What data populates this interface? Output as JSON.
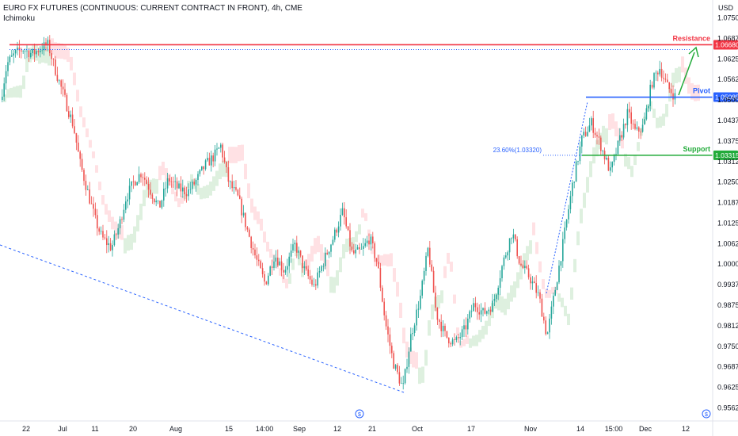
{
  "header": {
    "title": "EURO FX FUTURES (CONTINUOUS: CURRENT CONTRACT IN FRONT), 4h, CME",
    "indicator": "Ichimoku"
  },
  "colors": {
    "resistance": "#f23645",
    "pivot": "#2962ff",
    "support": "#22ab3a",
    "candle_up": "#26a69a",
    "candle_down": "#ef5350",
    "cloud_bull": "#c8e6c9",
    "cloud_bear": "#ffcdd2",
    "dotted_blue": "#2962ff"
  },
  "chart_data": {
    "type": "candlestick",
    "currency": "USD",
    "y_ticks": [
      "1.07500",
      "1.06875",
      "1.06250",
      "1.05625",
      "1.05000",
      "1.04375",
      "1.03750",
      "1.03125",
      "1.02500",
      "1.01875",
      "1.01250",
      "1.00625",
      "1.00000",
      "0.99375",
      "0.98750",
      "0.98125",
      "0.97500",
      "0.96875",
      "0.96250",
      "0.95625"
    ],
    "ylim": [
      0.9525,
      1.0785
    ],
    "x_ticks": [
      "22",
      "Jul",
      "11",
      "20",
      "Aug",
      "15",
      "14:00",
      "Sep",
      "12",
      "21",
      "Oct",
      "17",
      "Nov",
      "14",
      "15:00",
      "Dec",
      "12"
    ],
    "price_path": [
      [
        0,
        1.05
      ],
      [
        8,
        1.061
      ],
      [
        18,
        1.064
      ],
      [
        28,
        1.0655
      ],
      [
        40,
        1.064
      ],
      [
        52,
        1.066
      ],
      [
        60,
        1.0668
      ],
      [
        68,
        1.06
      ],
      [
        80,
        1.051
      ],
      [
        92,
        1.042
      ],
      [
        100,
        1.031
      ],
      [
        110,
        1.022
      ],
      [
        120,
        1.013
      ],
      [
        128,
        1.008
      ],
      [
        140,
        1.005
      ],
      [
        150,
        1.012
      ],
      [
        158,
        1.02
      ],
      [
        168,
        1.025
      ],
      [
        178,
        1.028
      ],
      [
        190,
        1.022
      ],
      [
        200,
        1.017
      ],
      [
        212,
        1.026
      ],
      [
        224,
        1.023
      ],
      [
        236,
        1.022
      ],
      [
        246,
        1.025
      ],
      [
        258,
        1.03
      ],
      [
        270,
        1.033
      ],
      [
        278,
        1.036
      ],
      [
        288,
        1.025
      ],
      [
        300,
        1.02
      ],
      [
        312,
        1.01
      ],
      [
        322,
        1.002
      ],
      [
        334,
        0.994
      ],
      [
        346,
        1.003
      ],
      [
        358,
        0.998
      ],
      [
        372,
        1.006
      ],
      [
        384,
        0.998
      ],
      [
        396,
        0.993
      ],
      [
        408,
        1.001
      ],
      [
        420,
        1.008
      ],
      [
        432,
        1.016
      ],
      [
        444,
        1.003
      ],
      [
        456,
        1.004
      ],
      [
        466,
        1.008
      ],
      [
        476,
        1.0
      ],
      [
        486,
        0.982
      ],
      [
        496,
        0.97
      ],
      [
        508,
        0.962
      ],
      [
        518,
        0.978
      ],
      [
        530,
        0.99
      ],
      [
        540,
        1.005
      ],
      [
        550,
        0.985
      ],
      [
        562,
        0.978
      ],
      [
        574,
        0.976
      ],
      [
        586,
        0.98
      ],
      [
        598,
        0.988
      ],
      [
        610,
        0.985
      ],
      [
        622,
        0.988
      ],
      [
        634,
        1.0
      ],
      [
        646,
        1.01
      ],
      [
        656,
        1.0
      ],
      [
        668,
        0.996
      ],
      [
        680,
        0.99
      ],
      [
        690,
        0.978
      ],
      [
        700,
        0.992
      ],
      [
        710,
        1.006
      ],
      [
        722,
        1.024
      ],
      [
        734,
        1.038
      ],
      [
        746,
        1.043
      ],
      [
        758,
        1.036
      ],
      [
        770,
        1.028
      ],
      [
        782,
        1.038
      ],
      [
        792,
        1.046
      ],
      [
        802,
        1.04
      ],
      [
        812,
        1.042
      ],
      [
        822,
        1.055
      ],
      [
        832,
        1.06
      ],
      [
        842,
        1.054
      ],
      [
        852,
        1.051
      ]
    ],
    "levels": [
      {
        "name": "Resistance",
        "value": 1.0668,
        "label": "1.06680"
      },
      {
        "name": "Pivot",
        "value": 1.05085,
        "label": "1.05085"
      },
      {
        "name": "Support",
        "value": 1.03315,
        "label": "1.03315"
      }
    ],
    "fib_label": "23.60%(1.03320)",
    "grid": false,
    "legend": "none"
  }
}
